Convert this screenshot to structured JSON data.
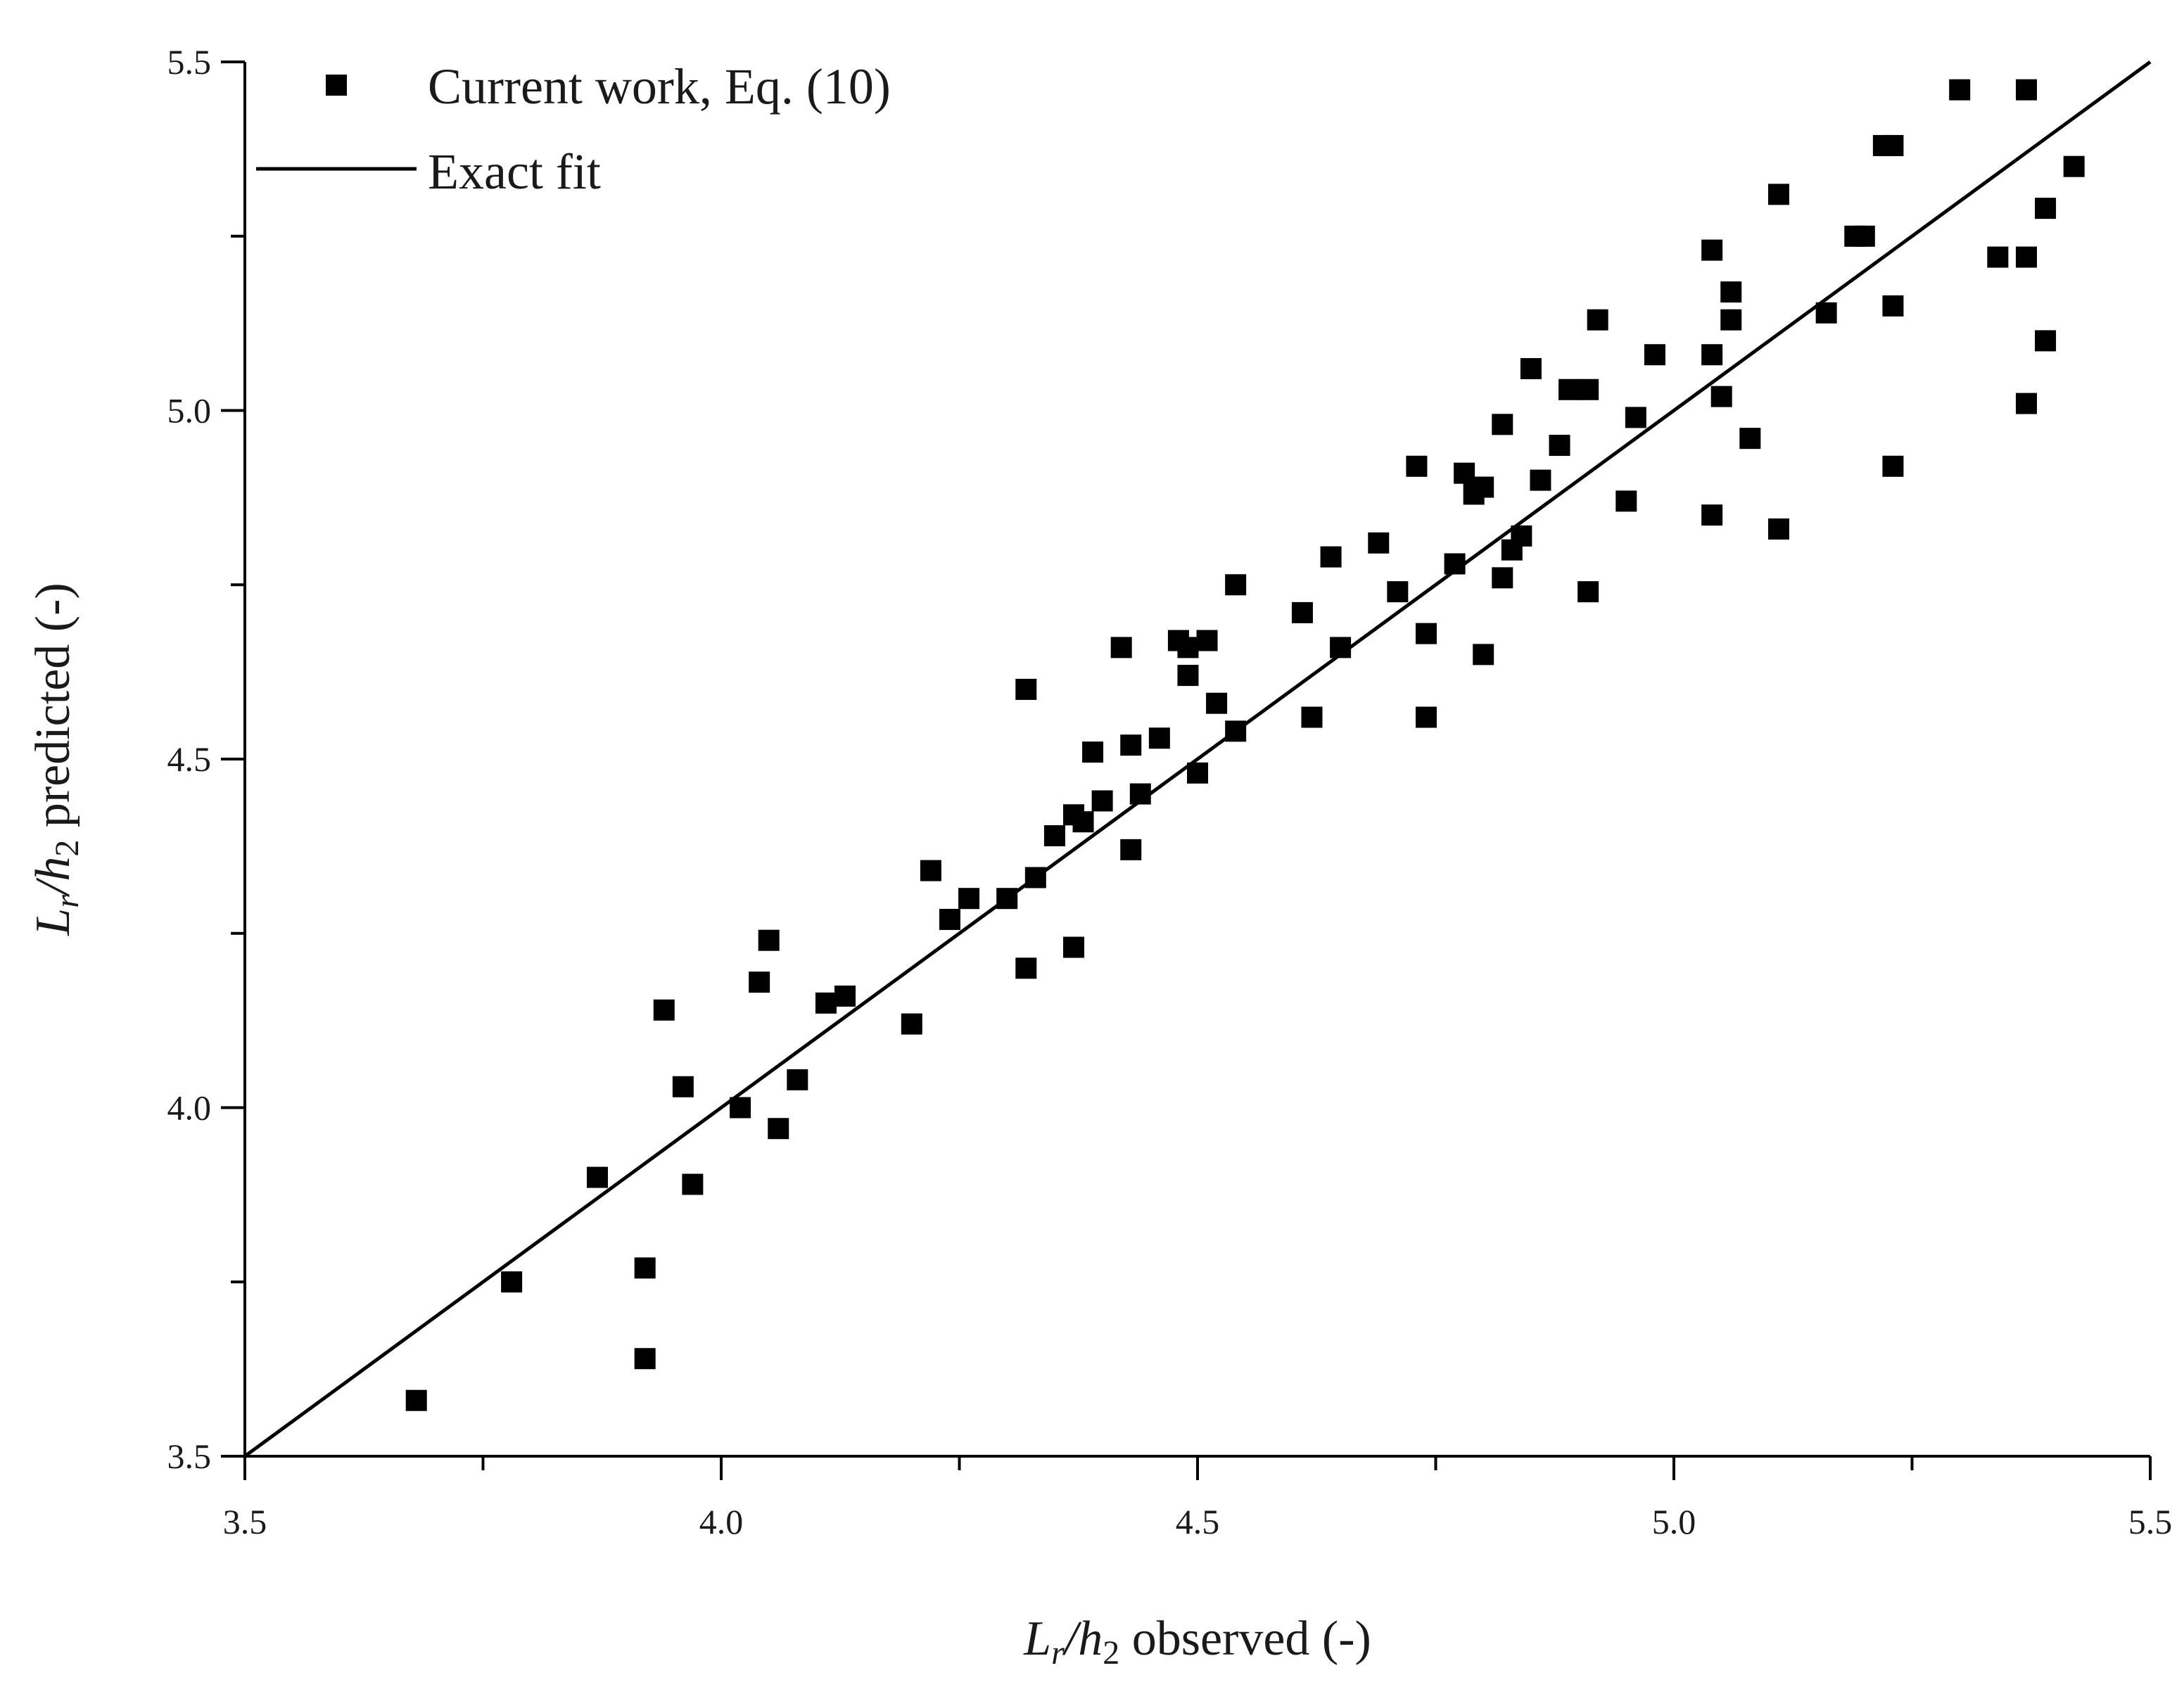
{
  "chart_data": {
    "type": "scatter",
    "xlabel": {
      "main": "L",
      "sub1": "r",
      "mid": "/h",
      "sub2": "2",
      "tail": " observed (-)"
    },
    "ylabel": {
      "main": "L",
      "sub1": "r",
      "mid": "/h",
      "sub2": "2",
      "tail": " predicted (-)"
    },
    "xlim": [
      3.5,
      5.5
    ],
    "ylim": [
      3.5,
      5.5
    ],
    "xticks": [
      "3.5",
      "4.0",
      "4.5",
      "5.0",
      "5.5"
    ],
    "yticks": [
      "3.5",
      "4.0",
      "4.5",
      "5.0",
      "5.5"
    ],
    "grid": false,
    "legend_position": "top-left",
    "colors": {
      "marker": "#000000",
      "line": "#000000",
      "axis": "#000000"
    },
    "series": [
      {
        "name": "Current work, Eq. (10)",
        "kind": "scatter",
        "marker": "square",
        "points": [
          [
            3.68,
            3.58
          ],
          [
            3.78,
            3.75
          ],
          [
            3.87,
            3.9
          ],
          [
            3.92,
            3.77
          ],
          [
            3.92,
            3.64
          ],
          [
            3.94,
            4.14
          ],
          [
            3.96,
            4.03
          ],
          [
            3.97,
            3.89
          ],
          [
            4.02,
            4.0
          ],
          [
            4.04,
            4.18
          ],
          [
            4.05,
            4.24
          ],
          [
            4.06,
            3.97
          ],
          [
            4.08,
            4.04
          ],
          [
            4.11,
            4.15
          ],
          [
            4.13,
            4.16
          ],
          [
            4.2,
            4.12
          ],
          [
            4.22,
            4.34
          ],
          [
            4.24,
            4.27
          ],
          [
            4.26,
            4.3
          ],
          [
            4.3,
            4.3
          ],
          [
            4.32,
            4.6
          ],
          [
            4.32,
            4.2
          ],
          [
            4.33,
            4.33
          ],
          [
            4.35,
            4.39
          ],
          [
            4.37,
            4.42
          ],
          [
            4.37,
            4.23
          ],
          [
            4.38,
            4.41
          ],
          [
            4.39,
            4.51
          ],
          [
            4.4,
            4.44
          ],
          [
            4.42,
            4.66
          ],
          [
            4.43,
            4.52
          ],
          [
            4.43,
            4.37
          ],
          [
            4.44,
            4.45
          ],
          [
            4.46,
            4.53
          ],
          [
            4.48,
            4.67
          ],
          [
            4.49,
            4.62
          ],
          [
            4.49,
            4.66
          ],
          [
            4.5,
            4.48
          ],
          [
            4.51,
            4.67
          ],
          [
            4.52,
            4.58
          ],
          [
            4.54,
            4.54
          ],
          [
            4.54,
            4.75
          ],
          [
            4.61,
            4.71
          ],
          [
            4.62,
            4.56
          ],
          [
            4.64,
            4.79
          ],
          [
            4.65,
            4.66
          ],
          [
            4.69,
            4.81
          ],
          [
            4.71,
            4.74
          ],
          [
            4.73,
            4.92
          ],
          [
            4.74,
            4.68
          ],
          [
            4.74,
            4.56
          ],
          [
            4.77,
            4.78
          ],
          [
            4.78,
            4.91
          ],
          [
            4.79,
            4.88
          ],
          [
            4.8,
            4.89
          ],
          [
            4.8,
            4.65
          ],
          [
            4.82,
            4.76
          ],
          [
            4.82,
            4.98
          ],
          [
            4.83,
            4.8
          ],
          [
            4.84,
            4.82
          ],
          [
            4.85,
            5.06
          ],
          [
            4.86,
            4.9
          ],
          [
            4.88,
            4.95
          ],
          [
            4.89,
            5.03
          ],
          [
            4.91,
            5.03
          ],
          [
            4.91,
            4.74
          ],
          [
            4.92,
            5.13
          ],
          [
            4.95,
            4.87
          ],
          [
            4.96,
            4.99
          ],
          [
            4.98,
            5.08
          ],
          [
            5.04,
            5.08
          ],
          [
            5.04,
            5.23
          ],
          [
            5.04,
            4.85
          ],
          [
            5.05,
            5.02
          ],
          [
            5.06,
            5.17
          ],
          [
            5.06,
            5.13
          ],
          [
            5.08,
            4.96
          ],
          [
            5.11,
            5.31
          ],
          [
            5.11,
            4.83
          ],
          [
            5.16,
            5.14
          ],
          [
            5.19,
            5.25
          ],
          [
            5.2,
            5.25
          ],
          [
            5.22,
            5.38
          ],
          [
            5.23,
            5.38
          ],
          [
            5.23,
            5.15
          ],
          [
            5.23,
            4.92
          ],
          [
            5.3,
            5.46
          ],
          [
            5.34,
            5.22
          ],
          [
            5.37,
            5.46
          ],
          [
            5.37,
            5.22
          ],
          [
            5.37,
            5.01
          ],
          [
            5.39,
            5.29
          ],
          [
            5.39,
            5.1
          ],
          [
            5.42,
            5.35
          ]
        ]
      },
      {
        "name": "Exact fit",
        "kind": "line",
        "points": [
          [
            3.5,
            3.5
          ],
          [
            5.5,
            5.5
          ]
        ]
      }
    ]
  }
}
